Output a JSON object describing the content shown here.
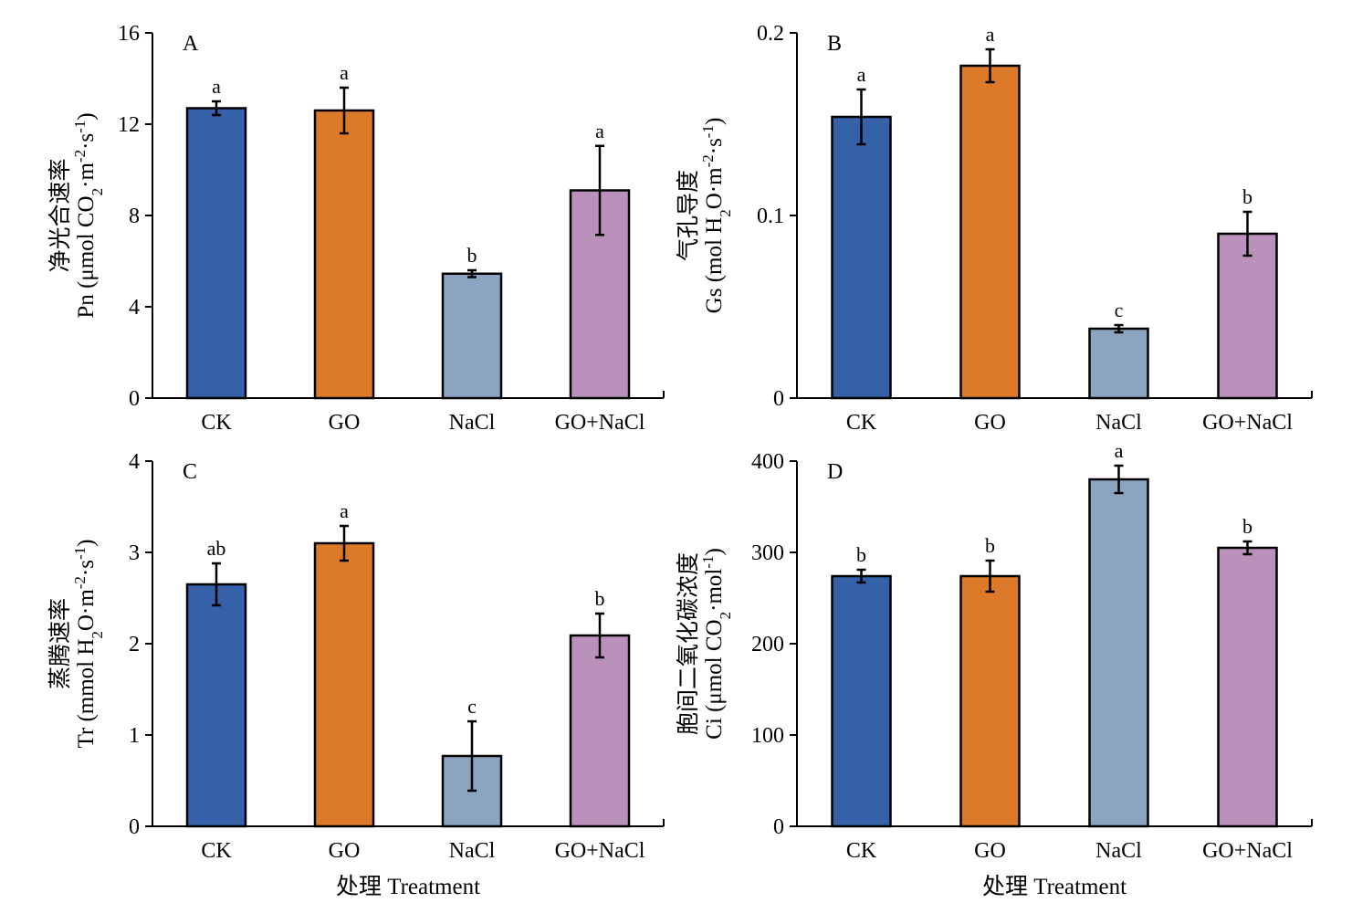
{
  "chart_data": [
    {
      "type": "bar",
      "panel_label": "A",
      "ylabel_cn": "净光合速率",
      "ylabel": "Pn (μmol CO₂·m⁻²·s⁻¹)",
      "ylabel_parts": [
        {
          "t": "Pn (μmol CO"
        },
        {
          "t": "2",
          "s": "sub"
        },
        {
          "t": "·m"
        },
        {
          "t": "-2",
          "s": "sup"
        },
        {
          "t": "·s"
        },
        {
          "t": "-1",
          "s": "sup"
        },
        {
          "t": ")"
        }
      ],
      "xlabel": "",
      "categories": [
        "CK",
        "GO",
        "NaCl",
        "GO+NaCl"
      ],
      "values": [
        12.7,
        12.6,
        5.45,
        9.1
      ],
      "errors": [
        0.3,
        1.0,
        0.15,
        1.95
      ],
      "letters": [
        "a",
        "a",
        "b",
        "a"
      ],
      "ylim": [
        0,
        16
      ],
      "yticks": [
        "0",
        "4",
        "8",
        "12",
        "16"
      ]
    },
    {
      "type": "bar",
      "panel_label": "B",
      "ylabel_cn": "气孔导度",
      "ylabel": "Gs (mol H₂O·m⁻²·s⁻¹)",
      "ylabel_parts": [
        {
          "t": "Gs (mol H"
        },
        {
          "t": "2",
          "s": "sub"
        },
        {
          "t": "O·m"
        },
        {
          "t": "-2",
          "s": "sup"
        },
        {
          "t": "·s"
        },
        {
          "t": "-1",
          "s": "sup"
        },
        {
          "t": ")"
        }
      ],
      "xlabel": "",
      "categories": [
        "CK",
        "GO",
        "NaCl",
        "GO+NaCl"
      ],
      "values": [
        0.154,
        0.182,
        0.038,
        0.09
      ],
      "errors": [
        0.015,
        0.009,
        0.002,
        0.012
      ],
      "letters": [
        "a",
        "a",
        "c",
        "b"
      ],
      "ylim": [
        0,
        0.2
      ],
      "yticks": [
        "0",
        "0.1",
        "0.2"
      ]
    },
    {
      "type": "bar",
      "panel_label": "C",
      "ylabel_cn": "蒸腾速率",
      "ylabel": "Tr (mmol H₂O·m⁻²·s⁻¹)",
      "ylabel_parts": [
        {
          "t": "Tr (mmol H"
        },
        {
          "t": "2",
          "s": "sub"
        },
        {
          "t": "O·m"
        },
        {
          "t": "-2",
          "s": "sup"
        },
        {
          "t": "·s"
        },
        {
          "t": "-1",
          "s": "sup"
        },
        {
          "t": ")"
        }
      ],
      "xlabel": "处理 Treatment",
      "categories": [
        "CK",
        "GO",
        "NaCl",
        "GO+NaCl"
      ],
      "values": [
        2.65,
        3.1,
        0.77,
        2.09
      ],
      "errors": [
        0.23,
        0.19,
        0.38,
        0.24
      ],
      "letters": [
        "ab",
        "a",
        "c",
        "b"
      ],
      "ylim": [
        0,
        4
      ],
      "yticks": [
        "0",
        "1",
        "2",
        "3",
        "4"
      ]
    },
    {
      "type": "bar",
      "panel_label": "D",
      "ylabel_cn": "胞间二氧化碳浓度",
      "ylabel": "Ci (μmol CO₂·mol⁻¹)",
      "ylabel_parts": [
        {
          "t": "Ci (μmol CO"
        },
        {
          "t": "2",
          "s": "sub"
        },
        {
          "t": "·mol"
        },
        {
          "t": "-1",
          "s": "sup"
        },
        {
          "t": ")"
        }
      ],
      "xlabel": "处理 Treatment",
      "categories": [
        "CK",
        "GO",
        "NaCl",
        "GO+NaCl"
      ],
      "values": [
        274,
        274,
        380,
        305
      ],
      "errors": [
        7,
        17,
        15,
        7
      ],
      "letters": [
        "b",
        "b",
        "a",
        "b"
      ],
      "ylim": [
        0,
        400
      ],
      "yticks": [
        "0",
        "100",
        "200",
        "300",
        "400"
      ]
    }
  ],
  "colors": {
    "bars": [
      "#3461a8",
      "#dd7a2a",
      "#8ba4bf",
      "#b991bb"
    ],
    "axis": "#000000",
    "background": "#ffffff"
  }
}
